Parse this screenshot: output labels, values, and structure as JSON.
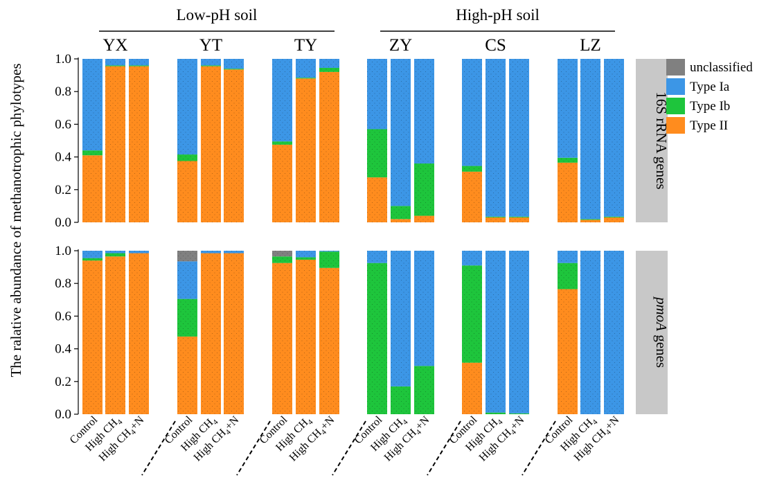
{
  "chart_data": {
    "type": "bar",
    "stacked": true,
    "ylabel": "The ralative abundance of methanotrophic phylotypes",
    "ylim": [
      0,
      1.0
    ],
    "yticks": [
      "0.0",
      "0.2",
      "0.4",
      "0.6",
      "0.8",
      "1.0"
    ],
    "soil_groups": [
      {
        "label": "Low-pH soil",
        "sites": [
          "YX",
          "YT",
          "TY"
        ]
      },
      {
        "label": "High-pH soil",
        "sites": [
          "ZY",
          "CS",
          "LZ"
        ]
      }
    ],
    "sites": [
      "YX",
      "YT",
      "TY",
      "ZY",
      "CS",
      "LZ"
    ],
    "treatments": [
      {
        "main": "Control",
        "sub": "",
        "tail": ""
      },
      {
        "main": "High CH",
        "sub": "4",
        "tail": ""
      },
      {
        "main": "High CH",
        "sub": "4",
        "tail": "+N"
      }
    ],
    "legend": [
      {
        "key": "unclassified",
        "label": "unclassified",
        "color": "#808080"
      },
      {
        "key": "typeIa",
        "label": "Type Ia",
        "color": "#3c96e6"
      },
      {
        "key": "typeIb",
        "label": "Type Ib",
        "color": "#1ec53c"
      },
      {
        "key": "typeII",
        "label": "Type II",
        "color": "#ff8c1e"
      }
    ],
    "stack_order": [
      "typeII",
      "typeIb",
      "typeIa",
      "unclassified"
    ],
    "panels": [
      {
        "strip_label": "16S rRNA genes",
        "strip_italic": false,
        "sites": [
          {
            "site": "YX",
            "bars": [
              {
                "typeII": 0.41,
                "typeIb": 0.03,
                "typeIa": 0.56,
                "unclassified": 0.0
              },
              {
                "typeII": 0.955,
                "typeIb": 0.005,
                "typeIa": 0.04,
                "unclassified": 0.0
              },
              {
                "typeII": 0.955,
                "typeIb": 0.005,
                "typeIa": 0.04,
                "unclassified": 0.0
              }
            ]
          },
          {
            "site": "YT",
            "bars": [
              {
                "typeII": 0.375,
                "typeIb": 0.04,
                "typeIa": 0.585,
                "unclassified": 0.0
              },
              {
                "typeII": 0.955,
                "typeIb": 0.005,
                "typeIa": 0.04,
                "unclassified": 0.0
              },
              {
                "typeII": 0.935,
                "typeIb": 0.005,
                "typeIa": 0.06,
                "unclassified": 0.0
              }
            ]
          },
          {
            "site": "TY",
            "bars": [
              {
                "typeII": 0.475,
                "typeIb": 0.02,
                "typeIa": 0.505,
                "unclassified": 0.0
              },
              {
                "typeII": 0.88,
                "typeIb": 0.005,
                "typeIa": 0.115,
                "unclassified": 0.0
              },
              {
                "typeII": 0.92,
                "typeIb": 0.025,
                "typeIa": 0.055,
                "unclassified": 0.0
              }
            ]
          },
          {
            "site": "ZY",
            "bars": [
              {
                "typeII": 0.275,
                "typeIb": 0.295,
                "typeIa": 0.43,
                "unclassified": 0.0
              },
              {
                "typeII": 0.02,
                "typeIb": 0.08,
                "typeIa": 0.9,
                "unclassified": 0.0
              },
              {
                "typeII": 0.04,
                "typeIb": 0.32,
                "typeIa": 0.64,
                "unclassified": 0.0
              }
            ]
          },
          {
            "site": "CS",
            "bars": [
              {
                "typeII": 0.31,
                "typeIb": 0.035,
                "typeIa": 0.655,
                "unclassified": 0.0
              },
              {
                "typeII": 0.03,
                "typeIb": 0.005,
                "typeIa": 0.965,
                "unclassified": 0.0
              },
              {
                "typeII": 0.03,
                "typeIb": 0.005,
                "typeIa": 0.965,
                "unclassified": 0.0
              }
            ]
          },
          {
            "site": "LZ",
            "bars": [
              {
                "typeII": 0.365,
                "typeIb": 0.03,
                "typeIa": 0.605,
                "unclassified": 0.0
              },
              {
                "typeII": 0.015,
                "typeIb": 0.005,
                "typeIa": 0.98,
                "unclassified": 0.0
              },
              {
                "typeII": 0.03,
                "typeIb": 0.005,
                "typeIa": 0.965,
                "unclassified": 0.0
              }
            ]
          }
        ]
      },
      {
        "strip_label": "pmoA genes",
        "strip_italic": true,
        "strip_italic_part": "pmoA",
        "strip_rest": " genes",
        "sites": [
          {
            "site": "YX",
            "bars": [
              {
                "typeII": 0.94,
                "typeIb": 0.015,
                "typeIa": 0.045,
                "unclassified": 0.0
              },
              {
                "typeII": 0.965,
                "typeIb": 0.02,
                "typeIa": 0.015,
                "unclassified": 0.0
              },
              {
                "typeII": 0.985,
                "typeIb": 0.0,
                "typeIa": 0.015,
                "unclassified": 0.0
              }
            ]
          },
          {
            "site": "YT",
            "bars": [
              {
                "typeII": 0.475,
                "typeIb": 0.23,
                "typeIa": 0.23,
                "unclassified": 0.065
              },
              {
                "typeII": 0.985,
                "typeIb": 0.0,
                "typeIa": 0.015,
                "unclassified": 0.0
              },
              {
                "typeII": 0.985,
                "typeIb": 0.0,
                "typeIa": 0.015,
                "unclassified": 0.0
              }
            ]
          },
          {
            "site": "TY",
            "bars": [
              {
                "typeII": 0.925,
                "typeIb": 0.04,
                "typeIa": 0.0,
                "unclassified": 0.035
              },
              {
                "typeII": 0.945,
                "typeIb": 0.015,
                "typeIa": 0.04,
                "unclassified": 0.0
              },
              {
                "typeII": 0.895,
                "typeIb": 0.1,
                "typeIa": 0.005,
                "unclassified": 0.0
              }
            ]
          },
          {
            "site": "ZY",
            "bars": [
              {
                "typeII": 0.0,
                "typeIb": 0.925,
                "typeIa": 0.075,
                "unclassified": 0.0
              },
              {
                "typeII": 0.0,
                "typeIb": 0.17,
                "typeIa": 0.83,
                "unclassified": 0.0
              },
              {
                "typeII": 0.0,
                "typeIb": 0.295,
                "typeIa": 0.705,
                "unclassified": 0.0
              }
            ]
          },
          {
            "site": "CS",
            "bars": [
              {
                "typeII": 0.315,
                "typeIb": 0.595,
                "typeIa": 0.09,
                "unclassified": 0.0
              },
              {
                "typeII": 0.0,
                "typeIb": 0.01,
                "typeIa": 0.99,
                "unclassified": 0.0
              },
              {
                "typeII": 0.0,
                "typeIb": 0.005,
                "typeIa": 0.995,
                "unclassified": 0.0
              }
            ]
          },
          {
            "site": "LZ",
            "bars": [
              {
                "typeII": 0.765,
                "typeIb": 0.16,
                "typeIa": 0.075,
                "unclassified": 0.0
              },
              {
                "typeII": 0.0,
                "typeIb": 0.0,
                "typeIa": 1.0,
                "unclassified": 0.0
              },
              {
                "typeII": 0.0,
                "typeIb": 0.0,
                "typeIa": 1.0,
                "unclassified": 0.0
              }
            ]
          }
        ]
      }
    ]
  }
}
